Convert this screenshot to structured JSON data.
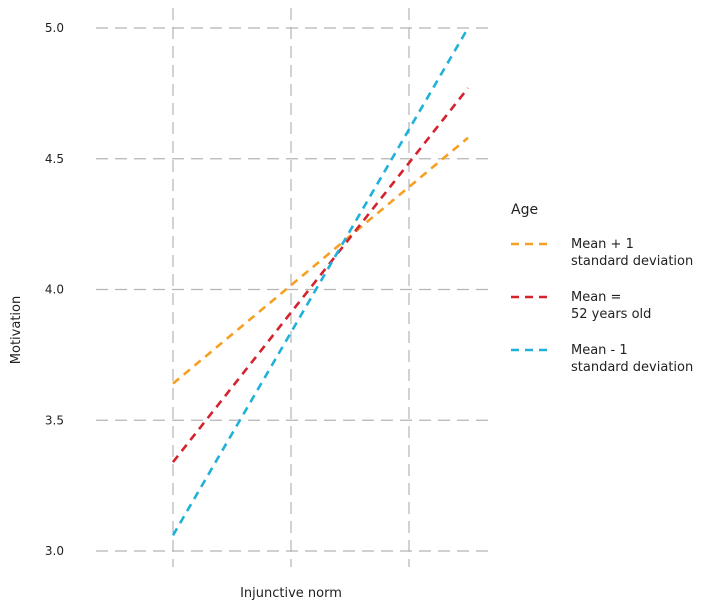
{
  "chart_data": {
    "type": "line",
    "xlabel": "Injunctive norm",
    "ylabel": "Motivation",
    "ylim": [
      3.0,
      5.0
    ],
    "yticks": [
      "3.0",
      "3.5",
      "4.0",
      "4.5",
      "5.0"
    ],
    "xlim": [
      -1.2,
      1.2
    ],
    "xgrid": [
      -1,
      0,
      1
    ],
    "grid": true,
    "legend": {
      "title": "Age",
      "placement": "right",
      "entries": [
        {
          "lines": [
            "Mean + 1",
            "standard deviation"
          ],
          "color": "#f5a023"
        },
        {
          "lines": [
            "Mean =",
            "52 years old"
          ],
          "color": "#d4222f"
        },
        {
          "lines": [
            "Mean - 1",
            "standard deviation"
          ],
          "color": "#1fb1da"
        }
      ]
    },
    "series": [
      {
        "x": [
          -1.0,
          1.5
        ],
        "y": [
          3.64,
          4.58
        ],
        "color": "#f5a023"
      },
      {
        "x": [
          -1.0,
          1.5
        ],
        "y": [
          3.34,
          4.77
        ],
        "color": "#d4222f"
      },
      {
        "x": [
          -1.0,
          1.5
        ],
        "y": [
          3.06,
          5.0
        ],
        "color": "#1fb1da"
      }
    ]
  }
}
